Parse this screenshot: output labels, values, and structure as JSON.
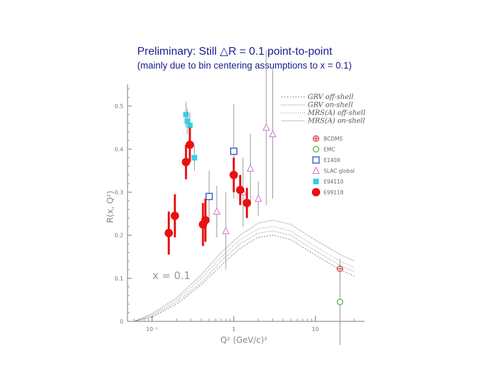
{
  "slide": {
    "title": "Preliminary: Still △R = 0.1 point-to-point",
    "subtitle": "(mainly due to bin centering assumptions to x = 0.1)"
  },
  "chart_data": {
    "type": "scatter",
    "title": "",
    "xlabel": "Q² (GeV/c)²",
    "ylabel": "R(x, Q²)",
    "xscale": "log",
    "xlim": [
      0.05,
      40
    ],
    "ylim": [
      0,
      0.55
    ],
    "x_ticks": [
      {
        "value": 0.1,
        "label": "10⁻¹"
      },
      {
        "value": 1,
        "label": "1"
      },
      {
        "value": 10,
        "label": "10"
      }
    ],
    "y_ticks": [
      {
        "value": 0,
        "label": "0"
      },
      {
        "value": 0.1,
        "label": "0.1"
      },
      {
        "value": 0.2,
        "label": "0.2"
      },
      {
        "value": 0.3,
        "label": "0.3"
      },
      {
        "value": 0.4,
        "label": "0.4"
      },
      {
        "value": 0.5,
        "label": "0.5"
      }
    ],
    "annotation": "x = 0.1",
    "grid": false,
    "legend_position": "top-right",
    "curves": [
      {
        "name": "GRV off-shell",
        "dash": "2,2",
        "x": [
          0.06,
          0.1,
          0.2,
          0.4,
          0.7,
          1.2,
          2,
          3,
          5,
          8,
          12,
          20,
          30
        ],
        "y": [
          0.0,
          0.01,
          0.04,
          0.085,
          0.13,
          0.17,
          0.195,
          0.2,
          0.19,
          0.165,
          0.145,
          0.12,
          0.105
        ]
      },
      {
        "name": "GRV on-shell",
        "dash": "1,1.5",
        "x": [
          0.06,
          0.1,
          0.2,
          0.4,
          0.7,
          1.2,
          2,
          3,
          5,
          8,
          12,
          20,
          30
        ],
        "y": [
          0.0,
          0.012,
          0.045,
          0.09,
          0.14,
          0.18,
          0.205,
          0.21,
          0.2,
          0.175,
          0.155,
          0.13,
          0.115
        ]
      },
      {
        "name": "MRS(A) off-shell",
        "dash": "1,2",
        "x": [
          0.06,
          0.1,
          0.2,
          0.4,
          0.7,
          1.2,
          2,
          3,
          5,
          8,
          12,
          20,
          30
        ],
        "y": [
          0.0,
          0.015,
          0.05,
          0.1,
          0.15,
          0.19,
          0.215,
          0.22,
          0.21,
          0.185,
          0.165,
          0.14,
          0.125
        ]
      },
      {
        "name": "MRS(A) on-shell",
        "dash": "1,1",
        "x": [
          0.06,
          0.1,
          0.2,
          0.4,
          0.7,
          1.2,
          2,
          3,
          5,
          8,
          12,
          20,
          30
        ],
        "y": [
          0.0,
          0.018,
          0.055,
          0.108,
          0.16,
          0.2,
          0.228,
          0.235,
          0.225,
          0.2,
          0.18,
          0.155,
          0.14
        ]
      }
    ],
    "series": [
      {
        "name": "BCDMS",
        "marker": "cross",
        "color": "#e04040",
        "points": [
          {
            "x": 20,
            "y": 0.122,
            "err": 0.02
          }
        ]
      },
      {
        "name": "EMC",
        "marker": "circle-open",
        "color": "#40c040",
        "points": [
          {
            "x": 20,
            "y": 0.045,
            "err": 0.1
          }
        ]
      },
      {
        "name": "E140X",
        "marker": "square-open",
        "color": "#4060c0",
        "points": [
          {
            "x": 0.5,
            "y": 0.29,
            "err": 0.06
          },
          {
            "x": 1.0,
            "y": 0.395,
            "err": 0.11
          }
        ]
      },
      {
        "name": "SLAC global",
        "marker": "triangle-open",
        "color": "#d070d0",
        "points": [
          {
            "x": 0.62,
            "y": 0.255,
            "err": 0.06
          },
          {
            "x": 0.8,
            "y": 0.21,
            "err": 0.09
          },
          {
            "x": 1.3,
            "y": 0.3,
            "err": 0.08
          },
          {
            "x": 1.6,
            "y": 0.355,
            "err": 0.08
          },
          {
            "x": 2.0,
            "y": 0.285,
            "err": 0.04
          },
          {
            "x": 2.5,
            "y": 0.45,
            "err": 0.18
          },
          {
            "x": 3.0,
            "y": 0.435,
            "err": 0.15
          }
        ]
      },
      {
        "name": "E94110",
        "marker": "square-filled",
        "color": "#33d0e8",
        "points": [
          {
            "x": 0.26,
            "y": 0.48,
            "err": 0.03
          },
          {
            "x": 0.27,
            "y": 0.465,
            "err": 0.03
          },
          {
            "x": 0.29,
            "y": 0.455,
            "err": 0.03
          },
          {
            "x": 0.33,
            "y": 0.38,
            "err": 0.03
          }
        ]
      },
      {
        "name": "E99118",
        "marker": "circle-filled",
        "color": "#e81010",
        "points": [
          {
            "x": 0.16,
            "y": 0.205,
            "err": 0.05
          },
          {
            "x": 0.19,
            "y": 0.245,
            "err": 0.05
          },
          {
            "x": 0.26,
            "y": 0.37,
            "err": 0.04
          },
          {
            "x": 0.29,
            "y": 0.41,
            "err": 0.04
          },
          {
            "x": 0.42,
            "y": 0.225,
            "err": 0.05
          },
          {
            "x": 0.45,
            "y": 0.235,
            "err": 0.05
          },
          {
            "x": 1.0,
            "y": 0.34,
            "err": 0.04
          },
          {
            "x": 1.2,
            "y": 0.305,
            "err": 0.035
          },
          {
            "x": 1.45,
            "y": 0.275,
            "err": 0.035
          }
        ]
      }
    ]
  }
}
